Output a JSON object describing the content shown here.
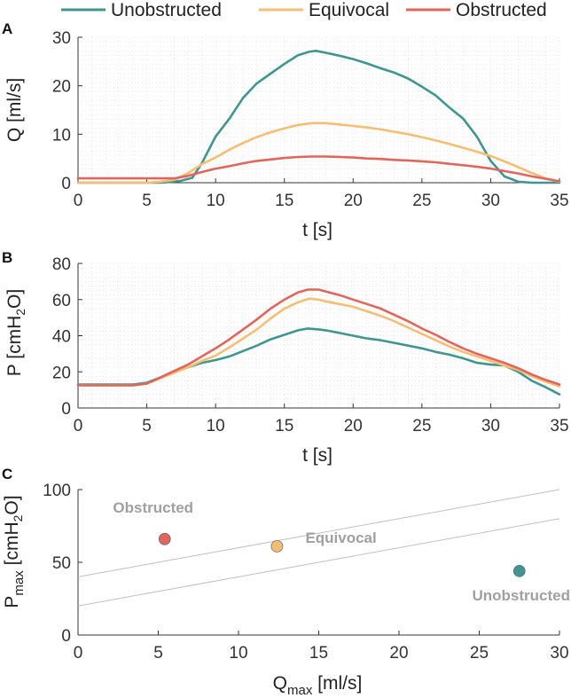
{
  "legend": {
    "items": [
      {
        "label": "Unobstructed",
        "color": "#3f9690"
      },
      {
        "label": "Equivocal",
        "color": "#f6be74"
      },
      {
        "label": "Obstructed",
        "color": "#e2655d"
      }
    ]
  },
  "chart_data": [
    {
      "panel": "A",
      "type": "line",
      "xlabel": "t [s]",
      "ylabel": "Q [ml/s]",
      "xlim": [
        0,
        35
      ],
      "ylim": [
        0,
        30
      ],
      "xticks": [
        0,
        5,
        10,
        15,
        20,
        25,
        30,
        35
      ],
      "yticks": [
        0,
        10,
        20,
        30
      ],
      "grid": "dotted",
      "series": [
        {
          "name": "Unobstructed",
          "color": "#3f9690",
          "x": [
            0,
            5,
            6,
            6.8,
            7.5,
            8.3,
            9,
            10,
            11,
            12,
            13,
            14,
            15,
            16,
            16.8,
            17.3,
            18,
            19,
            20,
            21,
            22,
            23,
            24,
            25,
            26,
            27,
            28,
            29,
            30,
            31,
            32,
            33,
            35
          ],
          "y": [
            0,
            0,
            0,
            0.2,
            0.4,
            1.0,
            4.0,
            9.5,
            13.2,
            17.5,
            20.5,
            22.5,
            24.5,
            26.3,
            27.0,
            27.2,
            26.8,
            26.2,
            25.5,
            24.6,
            23.6,
            22.7,
            21.5,
            19.8,
            18.0,
            15.5,
            13.2,
            9.5,
            4.5,
            1.3,
            0.2,
            0,
            0
          ]
        },
        {
          "name": "Equivocal",
          "color": "#f6be74",
          "x": [
            0,
            5,
            6,
            7,
            8,
            9,
            10,
            11,
            12,
            13,
            14,
            15,
            16,
            17,
            18,
            19,
            20,
            21,
            22,
            23,
            24,
            25,
            26,
            27,
            28,
            29,
            30,
            31,
            32,
            33,
            34,
            35
          ],
          "y": [
            0,
            0,
            0.2,
            0.6,
            2.0,
            3.8,
            5.2,
            6.8,
            8.2,
            9.4,
            10.4,
            11.2,
            11.9,
            12.3,
            12.3,
            12.0,
            11.7,
            11.4,
            11.0,
            10.5,
            10.0,
            9.4,
            8.7,
            8.0,
            7.2,
            6.4,
            5.5,
            4.4,
            3.2,
            2.0,
            0.9,
            0.2
          ]
        },
        {
          "name": "Obstructed",
          "color": "#e2655d",
          "x": [
            0,
            7,
            8,
            9,
            10,
            11,
            12,
            13,
            14,
            15,
            16,
            17,
            18,
            19,
            20,
            21,
            22,
            23,
            24,
            25,
            26,
            27,
            28,
            29,
            30,
            31,
            32,
            33,
            34,
            35
          ],
          "y": [
            0.9,
            0.9,
            1.4,
            2.2,
            2.9,
            3.4,
            4.0,
            4.5,
            4.8,
            5.1,
            5.3,
            5.4,
            5.4,
            5.3,
            5.2,
            5.0,
            4.9,
            4.7,
            4.6,
            4.4,
            4.2,
            3.9,
            3.6,
            3.3,
            2.9,
            2.4,
            1.9,
            1.3,
            0.8,
            0.3
          ]
        }
      ]
    },
    {
      "panel": "B",
      "type": "line",
      "xlabel": "t [s]",
      "ylabel_main": "P [cmH",
      "ylabel_sub": "2",
      "ylabel_tail": "O]",
      "xlim": [
        0,
        35
      ],
      "ylim": [
        0,
        80
      ],
      "xticks": [
        0,
        5,
        10,
        15,
        20,
        25,
        30,
        35
      ],
      "yticks": [
        0,
        20,
        40,
        60,
        80
      ],
      "grid": "dotted",
      "series": [
        {
          "name": "Unobstructed",
          "color": "#3f9690",
          "x": [
            0,
            2,
            4,
            5,
            6,
            7,
            8,
            9,
            10,
            11,
            12,
            13,
            14,
            15,
            16,
            16.7,
            17.5,
            18,
            19,
            20,
            21,
            22,
            23,
            24,
            25,
            26,
            27,
            28,
            29,
            30,
            31,
            32,
            33,
            34,
            35
          ],
          "y": [
            13,
            13,
            13,
            14,
            17,
            20,
            22.5,
            25,
            26.5,
            28.5,
            31.5,
            34.5,
            38,
            40.5,
            43,
            44,
            43.5,
            43,
            41.5,
            40,
            38.5,
            37.5,
            36,
            34.5,
            33,
            31,
            29.5,
            27.5,
            25,
            24,
            23.5,
            20,
            15,
            11.5,
            7.5
          ]
        },
        {
          "name": "Equivocal",
          "color": "#f6be74",
          "x": [
            0,
            2,
            4,
            5,
            6,
            7,
            8,
            9,
            10,
            11,
            12,
            13,
            14,
            15,
            16,
            16.8,
            17.5,
            18,
            19,
            20,
            21,
            22,
            23,
            24,
            25,
            26,
            27,
            28,
            29,
            30,
            31,
            32,
            33,
            34,
            35
          ],
          "y": [
            12.5,
            12.5,
            12.5,
            13.5,
            16.5,
            19.5,
            22.5,
            26,
            29,
            33.5,
            38.5,
            43.5,
            49.5,
            55,
            58.5,
            60.5,
            60,
            59,
            57.5,
            56,
            53.5,
            51,
            48,
            44.5,
            41,
            37.5,
            34,
            31,
            28.5,
            26,
            23.5,
            21,
            17.5,
            14.5,
            12
          ]
        },
        {
          "name": "Obstructed",
          "color": "#e2655d",
          "x": [
            0,
            2,
            4,
            5,
            6,
            7,
            8,
            9,
            10,
            11,
            12,
            13,
            14,
            15,
            16,
            16.7,
            17.5,
            18,
            19,
            20,
            21,
            22,
            23,
            24,
            25,
            26,
            27,
            28,
            29,
            30,
            31,
            32,
            33,
            34,
            35
          ],
          "y": [
            12.5,
            12.5,
            12.5,
            13.5,
            17,
            20.5,
            24,
            28.5,
            33,
            38,
            43.5,
            49,
            55,
            60,
            64,
            65.5,
            65.5,
            64.5,
            62.5,
            60,
            57.5,
            55,
            51.5,
            48,
            44,
            40.5,
            36.5,
            33,
            30,
            27.5,
            25,
            22,
            18.5,
            15.5,
            13
          ]
        }
      ]
    },
    {
      "panel": "C",
      "type": "scatter",
      "xlabel_main": "Q",
      "xlabel_sub": "max",
      "xlabel_tail": " [ml/s]",
      "ylabel_main": "P",
      "ylabel_sub": "max",
      "ylabel_mid": " [cmH",
      "ylabel_sub2": "2",
      "ylabel_tail": "O]",
      "xlim": [
        0,
        30
      ],
      "ylim": [
        0,
        100
      ],
      "xticks": [
        0,
        5,
        10,
        15,
        20,
        25,
        30
      ],
      "yticks": [
        0,
        50,
        100
      ],
      "grid": "off",
      "lines": [
        {
          "x": [
            0,
            30
          ],
          "y": [
            40,
            100
          ],
          "color": "#c0c0c0"
        },
        {
          "x": [
            0,
            30
          ],
          "y": [
            20,
            80
          ],
          "color": "#c0c0c0"
        }
      ],
      "points": [
        {
          "name": "Obstructed",
          "label": "Obstructed",
          "x": 5.4,
          "y": 66,
          "color": "#e2655d"
        },
        {
          "name": "Equivocal",
          "label": "Equivocal",
          "x": 12.4,
          "y": 61,
          "color": "#f6be74"
        },
        {
          "name": "Unobstructed",
          "label": "Unobstructed",
          "x": 27.5,
          "y": 44,
          "color": "#3f9690"
        }
      ]
    }
  ]
}
